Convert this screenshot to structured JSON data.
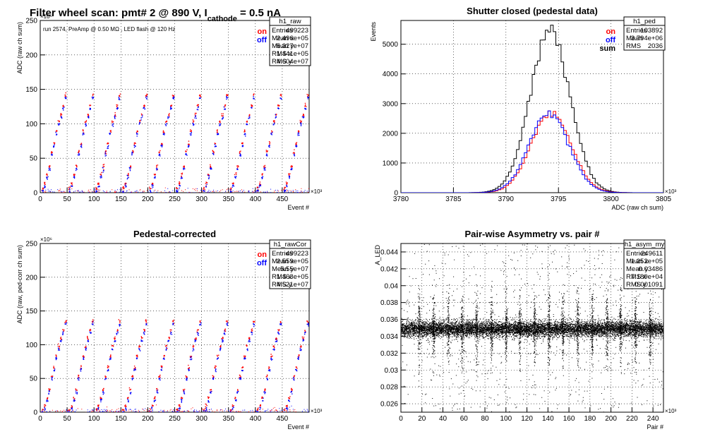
{
  "header": {
    "title_main": "Filter wheel scan: pmt#   2 @   890 V, I",
    "title_sub": "cathode",
    "title_tail": " = 0.5 nA"
  },
  "chart_data": [
    {
      "id": "raw",
      "type": "scatter",
      "title": "",
      "xlabel": "Event #",
      "ylabel": "ADC (raw ch sum)",
      "x_multiplier": "×10³",
      "y_multiplier": "×10⁶",
      "xlim": [
        0,
        500
      ],
      "ylim": [
        0,
        250
      ],
      "x_ticks": [
        0,
        50,
        100,
        150,
        200,
        250,
        300,
        350,
        400,
        450
      ],
      "y_ticks": [
        0,
        50,
        100,
        150,
        200,
        250
      ],
      "grid": true,
      "annotation": "run 2574, PreAmp @ 0.50 MΩ , LED flash @  120 Hz",
      "legend": [
        {
          "label": "on",
          "color": "#ff0000"
        },
        {
          "label": "off",
          "color": "#0000ff"
        }
      ],
      "legend_placement": "top-right",
      "levels": [
        5,
        12,
        25,
        37,
        58,
        70,
        88,
        102,
        112,
        125,
        140
      ],
      "series": [
        {
          "name": "on",
          "color": "#ff0000",
          "offset": 2
        },
        {
          "name": "off",
          "color": "#0000ff",
          "offset": -2
        }
      ],
      "stats": {
        "name": "h1_raw",
        "rows": [
          {
            "label": "Entries",
            "value": "499223"
          },
          {
            "label": "Mean x",
            "value": "2.496e+05"
          },
          {
            "label": "Mean y",
            "value": "5.327e+07"
          },
          {
            "label": "RMS x",
            "value": "1.441e+05"
          },
          {
            "label": "RMS y",
            "value": "4.604e+07"
          }
        ]
      }
    },
    {
      "id": "ped",
      "type": "histogram",
      "title": "Shutter closed (pedestal data)",
      "xlabel": "ADC (raw ch sum)",
      "ylabel": "Events",
      "x_multiplier": "×10³",
      "xlim": [
        3780,
        3805
      ],
      "ylim": [
        0,
        5800
      ],
      "x_ticks": [
        3780,
        3785,
        3790,
        3795,
        3800,
        3805
      ],
      "y_ticks": [
        0,
        1000,
        2000,
        3000,
        4000,
        5000
      ],
      "grid": true,
      "legend": [
        {
          "label": "on",
          "color": "#ff0000"
        },
        {
          "label": "off",
          "color": "#0000ff"
        },
        {
          "label": "sum",
          "color": "#000000"
        }
      ],
      "legend_placement": "top-right",
      "series": [
        {
          "name": "sum",
          "color": "#000000",
          "peak": 5400,
          "mean": 3794.2,
          "sigma": 1.9
        },
        {
          "name": "on",
          "color": "#ff0000",
          "peak": 2700,
          "mean": 3794.3,
          "sigma": 1.9
        },
        {
          "name": "off",
          "color": "#0000ff",
          "peak": 2680,
          "mean": 3794.1,
          "sigma": 1.9
        }
      ],
      "stats": {
        "name": "h1_ped",
        "rows": [
          {
            "label": "Entries",
            "value": "103892"
          },
          {
            "label": "Mean",
            "value": "3.794e+06"
          },
          {
            "label": "RMS",
            "value": "2036"
          }
        ]
      }
    },
    {
      "id": "rawcor",
      "type": "scatter",
      "title": "Pedestal-corrected",
      "xlabel": "Event #",
      "ylabel": "ADC (raw, ped-corr ch sum)",
      "x_multiplier": "×10³",
      "y_multiplier": "×10⁶",
      "xlim": [
        0,
        500
      ],
      "ylim": [
        0,
        250
      ],
      "x_ticks": [
        0,
        50,
        100,
        150,
        200,
        250,
        300,
        350,
        400,
        450
      ],
      "y_ticks": [
        0,
        50,
        100,
        150,
        200,
        250
      ],
      "grid": true,
      "legend": [
        {
          "label": "on",
          "color": "#ff0000"
        },
        {
          "label": "off",
          "color": "#0000ff"
        }
      ],
      "legend_placement": "top-right",
      "levels": [
        2,
        8,
        20,
        32,
        52,
        65,
        82,
        96,
        108,
        120,
        133
      ],
      "series": [
        {
          "name": "on",
          "color": "#ff0000",
          "offset": 2
        },
        {
          "name": "off",
          "color": "#0000ff",
          "offset": -2
        }
      ],
      "stats": {
        "name": "h1_rawCor",
        "rows": [
          {
            "label": "Entries",
            "value": "499223"
          },
          {
            "label": "Mean x",
            "value": "2.559e+05"
          },
          {
            "label": "Mean y",
            "value": "5.55e+07"
          },
          {
            "label": "RMS x",
            "value": "1.463e+05"
          },
          {
            "label": "RMS y",
            "value": "4.521e+07"
          }
        ]
      }
    },
    {
      "id": "asym",
      "type": "scatter",
      "title": "Pair-wise Asymmetry vs. pair #",
      "xlabel": "Pair #",
      "ylabel": "A_LED",
      "x_multiplier": "×10³",
      "xlim": [
        0,
        250
      ],
      "ylim": [
        0.025,
        0.045
      ],
      "x_ticks": [
        0,
        20,
        40,
        60,
        80,
        100,
        120,
        140,
        160,
        180,
        200,
        220,
        240
      ],
      "y_ticks": [
        0.026,
        0.028,
        0.03,
        0.032,
        0.034,
        0.036,
        0.038,
        0.04,
        0.042,
        0.044
      ],
      "grid": true,
      "band_center": 0.0349,
      "band_halfwidth": 0.0009,
      "spike_x": [
        17,
        31,
        45,
        58,
        72,
        86,
        100,
        113,
        127,
        141,
        154,
        168,
        182,
        196,
        209,
        223,
        237
      ],
      "stats": {
        "name": "h1_asym_my",
        "rows": [
          {
            "label": "Entries",
            "value": "249611"
          },
          {
            "label": "Mean x",
            "value": "1.252e+05"
          },
          {
            "label": "Mean y",
            "value": "0.03486"
          },
          {
            "label": "RMS x",
            "value": "7.189e+04"
          },
          {
            "label": "RMS y",
            "value": "0.001091"
          }
        ]
      }
    }
  ]
}
